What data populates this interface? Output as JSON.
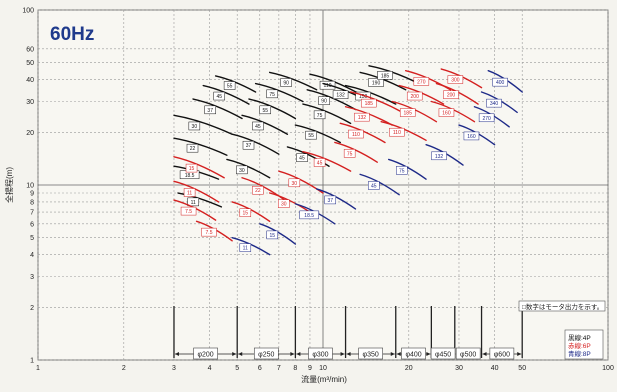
{
  "chart_data": {
    "type": "line",
    "title": "60Hz",
    "xlabel": "流量(m³/min)",
    "ylabel": "全揚程(m)",
    "x_scale": "log",
    "y_scale": "log",
    "xlim": [
      1,
      100
    ],
    "ylim": [
      1,
      100
    ],
    "x_ticks": [
      1,
      2,
      3,
      4,
      5,
      6,
      7,
      8,
      9,
      10,
      20,
      30,
      40,
      50,
      100
    ],
    "x_tick_labels": [
      "1",
      "2",
      "3",
      "4",
      "5",
      "6",
      "7",
      "8",
      "9",
      "10",
      "20",
      "30",
      "40",
      "50",
      "100"
    ],
    "y_ticks": [
      1,
      2,
      3,
      4,
      5,
      6,
      7,
      8,
      9,
      10,
      20,
      30,
      40,
      50,
      60,
      100
    ],
    "y_tick_labels": [
      "1",
      "2",
      "3",
      "4",
      "5",
      "6",
      "7",
      "8",
      "9",
      "10",
      "20",
      "30",
      "40",
      "50",
      "60",
      "100"
    ],
    "grid": true,
    "note": "□数字はモータ出力を示す。",
    "legend": [
      "黒線:4P",
      "赤線:6P",
      "青線:8P"
    ],
    "legend_colors": [
      "#111111",
      "#d42020",
      "#1e2a88"
    ],
    "diameter_ranges": [
      {
        "label": "φ200",
        "from": 3,
        "to": 5
      },
      {
        "label": "φ250",
        "from": 5,
        "to": 8
      },
      {
        "label": "φ300",
        "from": 8,
        "to": 12
      },
      {
        "label": "φ350",
        "from": 12,
        "to": 18
      },
      {
        "label": "φ400",
        "from": 18,
        "to": 24
      },
      {
        "label": "φ450",
        "from": 24,
        "to": 29
      },
      {
        "label": "φ500",
        "from": 29,
        "to": 36
      },
      {
        "label": "φ600",
        "from": 36,
        "to": 50
      }
    ],
    "curves": [
      {
        "pole": "4P",
        "x": [
          3.0,
          4.3
        ],
        "y": [
          12.8,
          10.8
        ],
        "label": "18.5"
      },
      {
        "pole": "4P",
        "x": [
          3.0,
          4.6
        ],
        "y": [
          18.5,
          14.8
        ],
        "label": "22"
      },
      {
        "pole": "4P",
        "x": [
          3.0,
          4.8
        ],
        "y": [
          25.0,
          19.5
        ],
        "label": "30"
      },
      {
        "pole": "4P",
        "x": [
          3.5,
          5.2
        ],
        "y": [
          31.0,
          24.0
        ],
        "label": "37"
      },
      {
        "pole": "4P",
        "x": [
          3.8,
          5.5
        ],
        "y": [
          37.0,
          29.0
        ],
        "label": "45"
      },
      {
        "pole": "4P",
        "x": [
          4.2,
          5.8
        ],
        "y": [
          42.0,
          34.0
        ],
        "label": "55"
      },
      {
        "pole": "4P",
        "x": [
          3.1,
          4.4
        ],
        "y": [
          9.0,
          7.5
        ],
        "label": "11"
      },
      {
        "pole": "4P",
        "x": [
          4.6,
          6.5
        ],
        "y": [
          14.0,
          11.0
        ],
        "label": "30"
      },
      {
        "pole": "4P",
        "x": [
          4.8,
          7.0
        ],
        "y": [
          19.5,
          15.0
        ],
        "label": "37"
      },
      {
        "pole": "4P",
        "x": [
          5.2,
          7.5
        ],
        "y": [
          25.0,
          19.5
        ],
        "label": "45"
      },
      {
        "pole": "4P",
        "x": [
          5.5,
          8.0
        ],
        "y": [
          31.0,
          24.0
        ],
        "label": "55"
      },
      {
        "pole": "4P",
        "x": [
          5.8,
          8.5
        ],
        "y": [
          38.0,
          30.0
        ],
        "label": "75"
      },
      {
        "pole": "4P",
        "x": [
          6.5,
          9.5
        ],
        "y": [
          44.0,
          35.0
        ],
        "label": "90"
      },
      {
        "pole": "4P",
        "x": [
          7.5,
          10.5
        ],
        "y": [
          16.5,
          12.8
        ],
        "label": "45"
      },
      {
        "pole": "4P",
        "x": [
          8.0,
          11.5
        ],
        "y": [
          22.0,
          17.5
        ],
        "label": "55"
      },
      {
        "pole": "4P",
        "x": [
          8.5,
          12.5
        ],
        "y": [
          29.0,
          22.5
        ],
        "label": "75"
      },
      {
        "pole": "4P",
        "x": [
          8.8,
          13.0
        ],
        "y": [
          35.0,
          27.0
        ],
        "label": "90"
      },
      {
        "pole": "4P",
        "x": [
          9.0,
          13.5
        ],
        "y": [
          43.0,
          33.0
        ],
        "label": "110"
      },
      {
        "pole": "4P",
        "x": [
          10.0,
          15.0
        ],
        "y": [
          38.0,
          29.0
        ],
        "label": "132"
      },
      {
        "pole": "4P",
        "x": [
          12.0,
          18.0
        ],
        "y": [
          37.0,
          29.0
        ],
        "label": "150"
      },
      {
        "pole": "4P",
        "x": [
          13.5,
          19.5
        ],
        "y": [
          44.0,
          35.0
        ],
        "label": "190"
      },
      {
        "pole": "4P",
        "x": [
          14.5,
          21.0
        ],
        "y": [
          48.0,
          39.0
        ],
        "label": "185"
      },
      {
        "pole": "6P",
        "x": [
          3.0,
          4.5
        ],
        "y": [
          14.5,
          11.0
        ],
        "label": "15"
      },
      {
        "pole": "6P",
        "x": [
          3.0,
          4.3
        ],
        "y": [
          10.5,
          8.0
        ],
        "label": "11"
      },
      {
        "pole": "6P",
        "x": [
          3.0,
          4.2
        ],
        "y": [
          8.2,
          6.3
        ],
        "label": "7.5"
      },
      {
        "pole": "6P",
        "x": [
          3.6,
          4.8
        ],
        "y": [
          6.2,
          4.8
        ],
        "label": "7.5"
      },
      {
        "pole": "6P",
        "x": [
          4.8,
          6.5
        ],
        "y": [
          8.0,
          6.2
        ],
        "label": "15"
      },
      {
        "pole": "6P",
        "x": [
          5.2,
          7.5
        ],
        "y": [
          11.0,
          8.0
        ],
        "label": "22"
      },
      {
        "pole": "6P",
        "x": [
          6.5,
          9.0
        ],
        "y": [
          9.0,
          7.0
        ],
        "label": "30"
      },
      {
        "pole": "6P",
        "x": [
          7.0,
          10.0
        ],
        "y": [
          12.0,
          9.0
        ],
        "label": "30"
      },
      {
        "pole": "6P",
        "x": [
          8.5,
          12.5
        ],
        "y": [
          15.5,
          12.0
        ],
        "label": "45"
      },
      {
        "pole": "6P",
        "x": [
          11.0,
          15.5
        ],
        "y": [
          17.5,
          13.5
        ],
        "label": "75"
      },
      {
        "pole": "6P",
        "x": [
          11.5,
          16.5
        ],
        "y": [
          22.5,
          17.5
        ],
        "label": "110"
      },
      {
        "pole": "6P",
        "x": [
          12.0,
          17.5
        ],
        "y": [
          28.0,
          22.0
        ],
        "label": "132"
      },
      {
        "pole": "6P",
        "x": [
          12.5,
          19.0
        ],
        "y": [
          34.0,
          26.0
        ],
        "label": "185"
      },
      {
        "pole": "6P",
        "x": [
          16.0,
          23.0
        ],
        "y": [
          23.0,
          18.0
        ],
        "label": "110"
      },
      {
        "pole": "6P",
        "x": [
          17.5,
          25.0
        ],
        "y": [
          30.0,
          23.0
        ],
        "label": "185"
      },
      {
        "pole": "6P",
        "x": [
          18.5,
          26.5
        ],
        "y": [
          37.0,
          29.0
        ],
        "label": "200"
      },
      {
        "pole": "6P",
        "x": [
          19.5,
          28.0
        ],
        "y": [
          45.0,
          35.0
        ],
        "label": "270"
      },
      {
        "pole": "6P",
        "x": [
          24.0,
          34.0
        ],
        "y": [
          30.0,
          23.0
        ],
        "label": "160"
      },
      {
        "pole": "6P",
        "x": [
          25.0,
          35.0
        ],
        "y": [
          38.0,
          29.0
        ],
        "label": "200"
      },
      {
        "pole": "6P",
        "x": [
          26.0,
          36.0
        ],
        "y": [
          46.0,
          36.0
        ],
        "label": "300"
      },
      {
        "pole": "8P",
        "x": [
          4.8,
          6.5
        ],
        "y": [
          5.0,
          4.0
        ],
        "label": "11"
      },
      {
        "pole": "8P",
        "x": [
          6.0,
          8.0
        ],
        "y": [
          6.0,
          4.6
        ],
        "label": "15"
      },
      {
        "pole": "8P",
        "x": [
          8.0,
          11.0
        ],
        "y": [
          7.8,
          6.0
        ],
        "label": "18.5"
      },
      {
        "pole": "8P",
        "x": [
          9.5,
          13.0
        ],
        "y": [
          9.5,
          7.3
        ],
        "label": "37"
      },
      {
        "pole": "8P",
        "x": [
          13.5,
          18.5
        ],
        "y": [
          11.5,
          8.8
        ],
        "label": "45"
      },
      {
        "pole": "8P",
        "x": [
          17.0,
          23.0
        ],
        "y": [
          14.0,
          10.8
        ],
        "label": "75"
      },
      {
        "pole": "8P",
        "x": [
          23.0,
          31.0
        ],
        "y": [
          17.0,
          13.0
        ],
        "label": "132"
      },
      {
        "pole": "8P",
        "x": [
          30.0,
          40.0
        ],
        "y": [
          22.0,
          17.0
        ],
        "label": "160"
      },
      {
        "pole": "8P",
        "x": [
          34.0,
          45.0
        ],
        "y": [
          28.0,
          21.5
        ],
        "label": "270"
      },
      {
        "pole": "8P",
        "x": [
          36.0,
          48.0
        ],
        "y": [
          34.0,
          26.0
        ],
        "label": "340"
      },
      {
        "pole": "8P",
        "x": [
          38.0,
          50.0
        ],
        "y": [
          45.0,
          34.0
        ],
        "label": "400"
      }
    ]
  }
}
